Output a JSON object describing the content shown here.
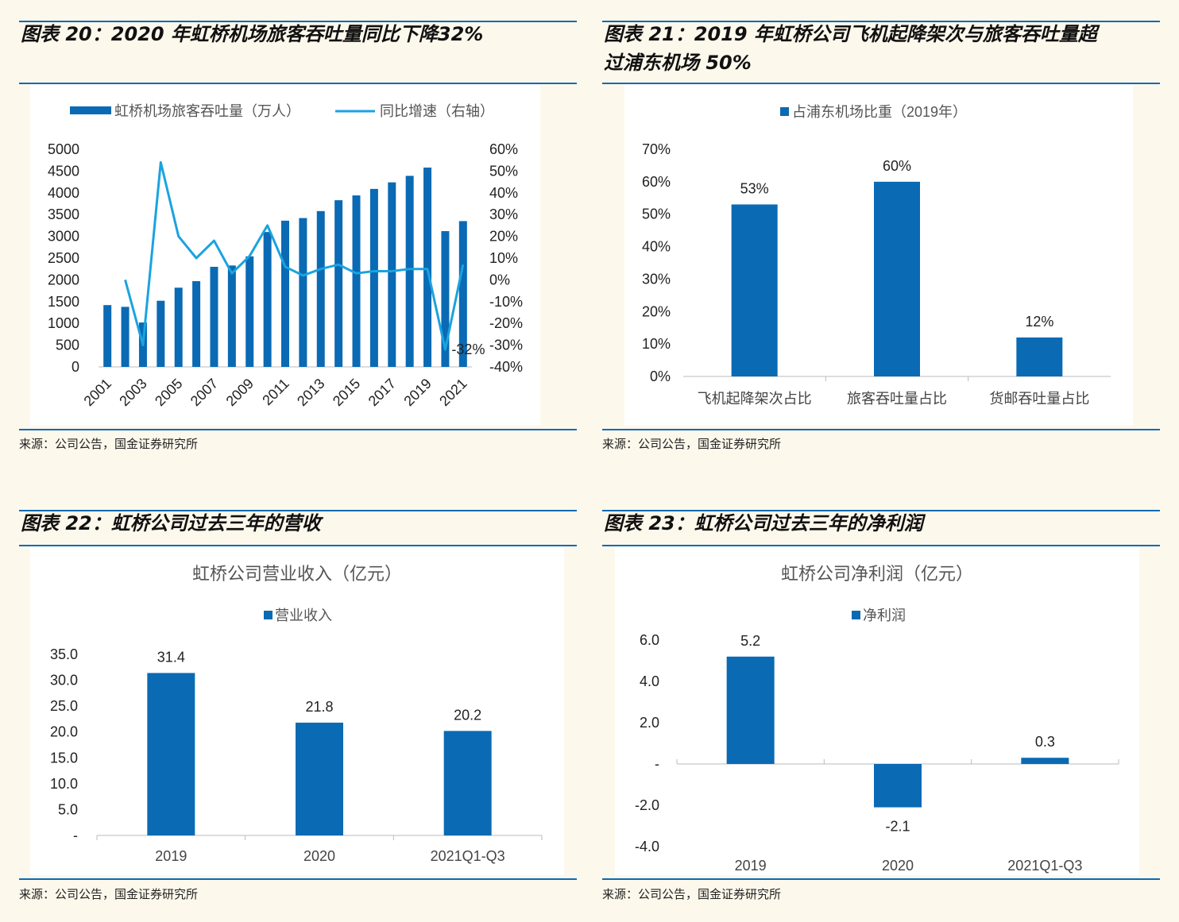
{
  "colors": {
    "bar": "#0a6ab4",
    "line": "#1aa3e0",
    "rule": "#0a6ab4"
  },
  "chart_data": [
    {
      "id": "fig20",
      "type": "bar+line",
      "title": "图表 20：2020 年虹桥机场旅客吞吐量同比下降32%",
      "legend": [
        "虹桥机场旅客吞吐量（万人）",
        "同比增速（右轴）"
      ],
      "categories": [
        "2001",
        "2002",
        "2003",
        "2004",
        "2005",
        "2006",
        "2007",
        "2008",
        "2009",
        "2010",
        "2011",
        "2012",
        "2013",
        "2014",
        "2015",
        "2016",
        "2017",
        "2018",
        "2019",
        "2020",
        "2021"
      ],
      "xtick_labels": [
        "2001",
        "",
        "2003",
        "",
        "2005",
        "",
        "2007",
        "",
        "2009",
        "",
        "2011",
        "",
        "2013",
        "",
        "2015",
        "",
        "2017",
        "",
        "2019",
        "",
        "2021"
      ],
      "bar_values": [
        1420,
        1380,
        1020,
        1520,
        1820,
        1970,
        2300,
        2330,
        2540,
        3100,
        3360,
        3420,
        3580,
        3830,
        3940,
        4090,
        4240,
        4390,
        4580,
        3120,
        3350
      ],
      "line_values": [
        null,
        0,
        -30,
        54,
        20,
        10,
        18,
        3,
        11,
        25,
        6,
        2,
        5,
        7,
        3,
        4,
        4,
        5,
        5,
        -32,
        7
      ],
      "y_left": {
        "min": 0,
        "max": 5000,
        "ticks": [
          "0",
          "500",
          "1000",
          "1500",
          "2000",
          "2500",
          "3000",
          "3500",
          "4000",
          "4500",
          "5000"
        ]
      },
      "y_right": {
        "min": -40,
        "max": 60,
        "ticks": [
          "-40%",
          "-30%",
          "-20%",
          "-10%",
          "0%",
          "10%",
          "20%",
          "30%",
          "40%",
          "50%",
          "60%"
        ]
      },
      "annotation": "-32%",
      "source": "来源：公司公告，国金证券研究所"
    },
    {
      "id": "fig21",
      "type": "bar",
      "title": "图表 21：2019 年虹桥公司飞机起降架次与旅客吞吐量超过浦东机场 50%",
      "title_lines": [
        "图表 21：2019 年虹桥公司飞机起降架次与旅客吞吐量超",
        "过浦东机场 50%"
      ],
      "legend": [
        "占浦东机场比重（2019年）"
      ],
      "categories": [
        "飞机起降架次占比",
        "旅客吞吐量占比",
        "货邮吞吐量占比"
      ],
      "values": [
        53,
        60,
        12
      ],
      "data_labels": [
        "53%",
        "60%",
        "12%"
      ],
      "y": {
        "min": 0,
        "max": 70,
        "ticks": [
          "0%",
          "10%",
          "20%",
          "30%",
          "40%",
          "50%",
          "60%",
          "70%"
        ]
      },
      "source": "来源：公司公告，国金证券研究所"
    },
    {
      "id": "fig22",
      "type": "bar",
      "title": "图表 22：虹桥公司过去三年的营收",
      "chart_title": "虹桥公司营业收入（亿元）",
      "legend": [
        "营业收入"
      ],
      "categories": [
        "2019",
        "2020",
        "2021Q1-Q3"
      ],
      "values": [
        31.4,
        21.8,
        20.2
      ],
      "data_labels": [
        "31.4",
        "21.8",
        "20.2"
      ],
      "y": {
        "min": 0,
        "max": 35,
        "ticks": [
          "-",
          "5.0",
          "10.0",
          "15.0",
          "20.0",
          "25.0",
          "30.0",
          "35.0"
        ]
      },
      "source": "来源：公司公告，国金证券研究所"
    },
    {
      "id": "fig23",
      "type": "bar",
      "title": "图表 23：虹桥公司过去三年的净利润",
      "chart_title": "虹桥公司净利润（亿元）",
      "legend": [
        "净利润"
      ],
      "categories": [
        "2019",
        "2020",
        "2021Q1-Q3"
      ],
      "values": [
        5.2,
        -2.1,
        0.3
      ],
      "data_labels": [
        "5.2",
        "-2.1",
        "0.3"
      ],
      "y": {
        "min": -4,
        "max": 6,
        "ticks": [
          "-4.0",
          "-2.0",
          "-",
          "2.0",
          "4.0",
          "6.0"
        ]
      },
      "source": "来源：公司公告，国金证券研究所"
    }
  ]
}
